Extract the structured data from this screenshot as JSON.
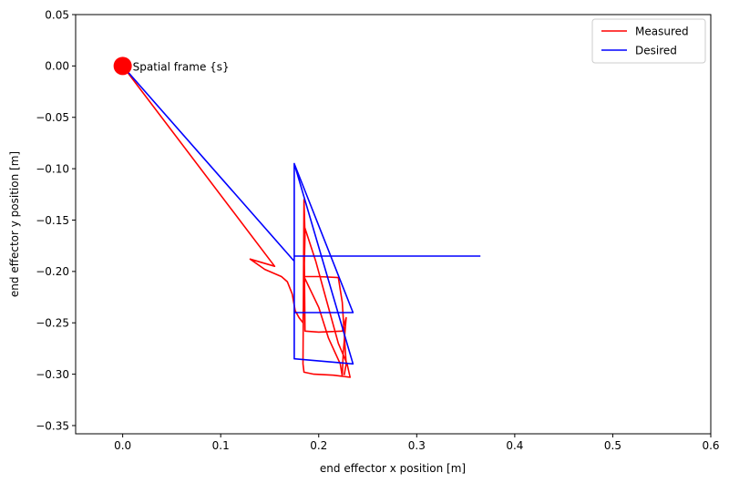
{
  "chart_data": {
    "type": "line",
    "title": "",
    "xlabel": "end effector x position [m]",
    "ylabel": "end effector y position [m]",
    "xlim": [
      -0.048,
      0.6
    ],
    "ylim": [
      -0.358,
      0.05
    ],
    "xticks": [
      0.0,
      0.1,
      0.2,
      0.3,
      0.4,
      0.5,
      0.6
    ],
    "xtick_labels": [
      "0.0",
      "0.1",
      "0.2",
      "0.3",
      "0.4",
      "0.5",
      "0.6"
    ],
    "yticks": [
      0.05,
      0.0,
      -0.05,
      -0.1,
      -0.15,
      -0.2,
      -0.25,
      -0.3,
      -0.35
    ],
    "ytick_labels": [
      "0.05",
      "0.00",
      "−0.05",
      "−0.10",
      "−0.15",
      "−0.20",
      "−0.25",
      "−0.30",
      "−0.35"
    ],
    "grid": false,
    "legend_position": "top-right",
    "series": [
      {
        "name": "Measured",
        "color": "#ff0000",
        "points": [
          [
            0.0,
            0.0
          ],
          [
            0.155,
            -0.195
          ],
          [
            0.13,
            -0.188
          ],
          [
            0.145,
            -0.198
          ],
          [
            0.162,
            -0.205
          ],
          [
            0.168,
            -0.21
          ],
          [
            0.173,
            -0.222
          ],
          [
            0.176,
            -0.238
          ],
          [
            0.18,
            -0.245
          ],
          [
            0.184,
            -0.25
          ],
          [
            0.186,
            -0.165
          ],
          [
            0.185,
            -0.13
          ],
          [
            0.184,
            -0.29
          ],
          [
            0.185,
            -0.298
          ],
          [
            0.195,
            -0.3
          ],
          [
            0.215,
            -0.301
          ],
          [
            0.232,
            -0.303
          ],
          [
            0.229,
            -0.29
          ],
          [
            0.22,
            -0.27
          ],
          [
            0.207,
            -0.225
          ],
          [
            0.197,
            -0.19
          ],
          [
            0.185,
            -0.155
          ],
          [
            0.186,
            -0.258
          ],
          [
            0.2,
            -0.259
          ],
          [
            0.224,
            -0.258
          ],
          [
            0.228,
            -0.245
          ],
          [
            0.225,
            -0.28
          ],
          [
            0.224,
            -0.302
          ],
          [
            0.222,
            -0.29
          ],
          [
            0.21,
            -0.265
          ],
          [
            0.2,
            -0.235
          ],
          [
            0.185,
            -0.205
          ],
          [
            0.2,
            -0.205
          ],
          [
            0.22,
            -0.206
          ],
          [
            0.224,
            -0.23
          ],
          [
            0.226,
            -0.26
          ],
          [
            0.228,
            -0.29
          ],
          [
            0.226,
            -0.301
          ]
        ]
      },
      {
        "name": "Desired",
        "color": "#0000ff",
        "points": [
          [
            0.0,
            0.0
          ],
          [
            0.175,
            -0.19
          ],
          [
            0.175,
            -0.095
          ],
          [
            0.175,
            -0.285
          ],
          [
            0.235,
            -0.29
          ],
          [
            0.175,
            -0.095
          ],
          [
            0.235,
            -0.24
          ],
          [
            0.175,
            -0.24
          ],
          [
            0.175,
            -0.185
          ],
          [
            0.365,
            -0.185
          ]
        ]
      }
    ],
    "annotations": [
      {
        "text": "Spatial frame {s}",
        "x": 0.0,
        "y": 0.0,
        "marker_color": "#ff0000"
      }
    ]
  }
}
